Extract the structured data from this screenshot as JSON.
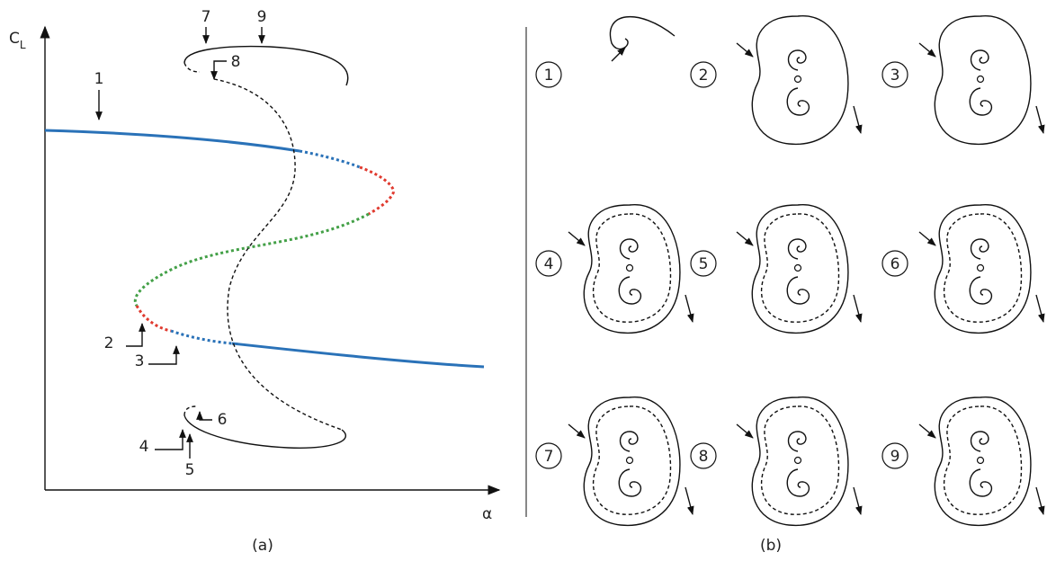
{
  "panel_a": {
    "y_axis_label": {
      "main": "C",
      "sub": "L"
    },
    "x_axis_label": "α",
    "annotations": [
      "1",
      "2",
      "3",
      "4",
      "5",
      "6",
      "7",
      "8",
      "9"
    ],
    "caption": "(a)"
  },
  "panel_b": {
    "portraits": [
      "1",
      "2",
      "3",
      "4",
      "5",
      "6",
      "7",
      "8",
      "9"
    ],
    "caption": "(b)"
  }
}
